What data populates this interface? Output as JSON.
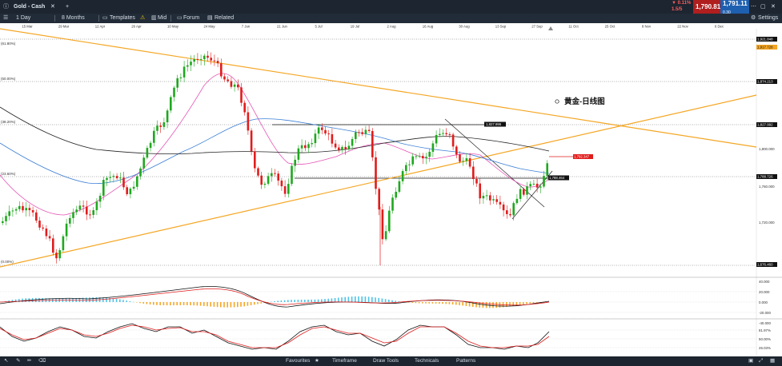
{
  "window": {
    "instrument": "Gold - Cash",
    "add": "+"
  },
  "quote": {
    "change": "▼ 0.11%",
    "change_sub": "1.5/5",
    "sell": "1,790.81",
    "buy": "1,791.11",
    "sell_sub": "",
    "buy_sub": "0.30"
  },
  "toolbar": {
    "timeframe": "1 Day",
    "range": "8 Months",
    "templates": "Templates",
    "mid": "Mid",
    "forum": "Forum",
    "related": "Related",
    "settings": "Settings"
  },
  "dates": [
    "15 Mar",
    "29 Mar",
    "12 Apr",
    "26 Apr",
    "10 May",
    "24 May",
    "7 Jun",
    "21 Jun",
    "5 Jul",
    "19 Jul",
    "2 Aug",
    "16 Aug",
    "30 Aug",
    "13 Sep",
    "27 Sep",
    "11 Oct",
    "25 Oct",
    "8 Nov",
    "22 Nov",
    "6 Dec"
  ],
  "price_labels": {
    "fib100": "(61.80%)",
    "fib50": "(50.00%)",
    "fib38": "(38.20%)",
    "fib236": "(23.60%)",
    "fib0": "(0.00%)"
  },
  "axis": {
    "p1": "1,921.848",
    "p2": "1,917.728",
    "p3": "1,874.213",
    "p4": "1,827.992",
    "p5": "1,800.000",
    "p6": "1,788.726",
    "p7": "1,760.000",
    "p8": "1,720.000",
    "p9": "1,676.460",
    "ind1": "40.000",
    "ind2": "20.000",
    "ind3": "0.000",
    "ind4": "-20.000",
    "ind5": "-40.000",
    "st1": "81.97%",
    "st2": "50.00%",
    "st3": "26.03%"
  },
  "chart_labels": {
    "res": "1,827.996",
    "cur": "1,792.347",
    "sup": "1,788.464",
    "title": "黄金-日线图"
  },
  "bottom": {
    "favourites": "Favourites",
    "timeframe": "Timeframe",
    "draw": "Draw Tools",
    "technicals": "Technicals",
    "patterns": "Patterns"
  },
  "colors": {
    "up": "#1fa81f",
    "down": "#e11c1c",
    "trend": "#f5a623",
    "ma_fast": "#e655b5",
    "ma_mid": "#3b7fd6",
    "ma_slow": "#222222"
  }
}
